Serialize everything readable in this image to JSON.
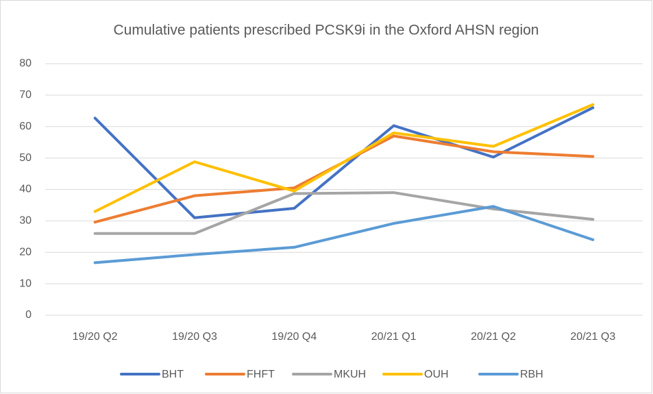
{
  "chart_data": {
    "type": "line",
    "title": "Cumulative patients prescribed PCSK9i in the Oxford AHSN region",
    "categories": [
      "19/20 Q2",
      "19/20 Q3",
      "19/20 Q4",
      "20/21 Q1",
      "20/21 Q2",
      "20/21 Q3"
    ],
    "series": [
      {
        "name": "BHT",
        "color": "#4472c4",
        "values": [
          62.7,
          31,
          34,
          60.3,
          50.3,
          66
        ]
      },
      {
        "name": "FHFT",
        "color": "#ed7d31",
        "values": [
          29.6,
          38,
          40.5,
          57,
          52,
          50.5
        ]
      },
      {
        "name": "MKUH",
        "color": "#a5a5a5",
        "values": [
          26,
          26,
          38.7,
          39,
          33.8,
          30.5
        ]
      },
      {
        "name": "OUH",
        "color": "#ffc000",
        "values": [
          33,
          48.8,
          39.5,
          58,
          53.7,
          67
        ]
      },
      {
        "name": "RBH",
        "color": "#5b9bd5",
        "values": [
          16.7,
          19.3,
          21.6,
          29.2,
          34.6,
          24
        ]
      }
    ],
    "ylim": [
      0,
      80
    ],
    "yticks": [
      0,
      10,
      20,
      30,
      40,
      50,
      60,
      70,
      80
    ],
    "grid": true,
    "legend": "bottom"
  }
}
